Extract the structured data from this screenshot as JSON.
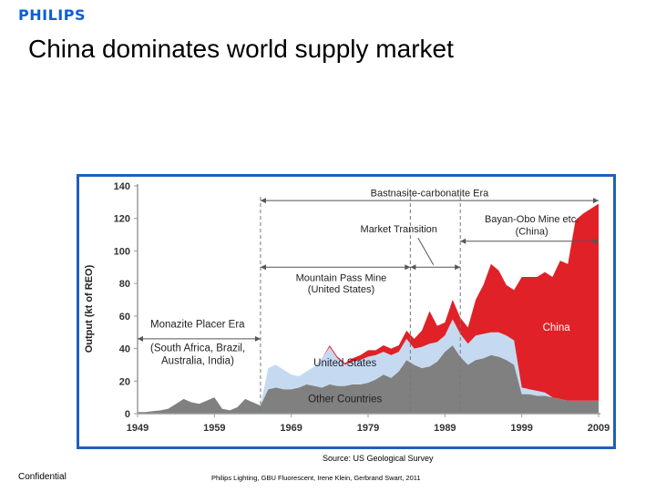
{
  "header": {
    "logo_text": "PHILIPS",
    "title": "China dominates world supply market"
  },
  "chart_data": {
    "type": "area",
    "title": "",
    "ylabel": "Output (kt of REO)",
    "xlabel": "",
    "xlim": [
      1949,
      2009
    ],
    "ylim": [
      0,
      140
    ],
    "x_ticks": [
      1949,
      1959,
      1969,
      1979,
      1989,
      1999,
      2009
    ],
    "y_ticks": [
      0,
      20,
      40,
      60,
      80,
      100,
      120,
      140
    ],
    "grid": false,
    "stacked": true,
    "x": [
      1949,
      1950,
      1951,
      1952,
      1953,
      1954,
      1955,
      1956,
      1957,
      1958,
      1959,
      1960,
      1961,
      1962,
      1963,
      1964,
      1965,
      1966,
      1967,
      1968,
      1969,
      1970,
      1971,
      1972,
      1973,
      1974,
      1975,
      1976,
      1977,
      1978,
      1979,
      1980,
      1981,
      1982,
      1983,
      1984,
      1985,
      1986,
      1987,
      1988,
      1989,
      1990,
      1991,
      1992,
      1993,
      1994,
      1995,
      1996,
      1997,
      1998,
      1999,
      2000,
      2001,
      2002,
      2003,
      2004,
      2005,
      2006,
      2007,
      2008,
      2009
    ],
    "series": [
      {
        "name": "Other Countries",
        "color": "#808080",
        "values": [
          1,
          1,
          1.5,
          2,
          3,
          6,
          9,
          7,
          6,
          8,
          10,
          3,
          2,
          4,
          9,
          7,
          5,
          15,
          16,
          15,
          15,
          16,
          18,
          17,
          16,
          18,
          17,
          17,
          18,
          18,
          19,
          21,
          24,
          22,
          26,
          33,
          30,
          28,
          29,
          32,
          38,
          42,
          35,
          30,
          33,
          34,
          36,
          35,
          33,
          30,
          12,
          12,
          11,
          11,
          10,
          9,
          8,
          8,
          8,
          8,
          8
        ]
      },
      {
        "name": "United States",
        "color": "#c5daf0",
        "values": [
          0,
          0,
          0,
          0,
          0,
          0,
          0,
          0,
          0,
          0,
          0,
          0,
          0,
          0,
          0,
          0,
          0,
          13,
          14,
          12,
          9,
          7,
          8,
          12,
          18,
          23,
          17,
          13,
          14,
          15,
          16,
          15,
          14,
          14,
          12,
          13,
          10,
          13,
          14,
          12,
          10,
          16,
          14,
          13,
          15,
          15,
          14,
          15,
          15,
          15,
          4,
          3,
          3,
          2,
          0,
          0,
          0,
          0,
          0,
          0,
          0
        ]
      },
      {
        "name": "China",
        "color": "#e02127",
        "values": [
          0,
          0,
          0,
          0,
          0,
          0,
          0,
          0,
          0,
          0,
          0,
          0,
          0,
          0,
          0,
          0,
          0,
          0,
          0,
          0,
          0,
          0,
          0,
          0,
          0,
          1,
          1,
          1,
          2,
          3,
          4,
          3,
          4,
          4,
          4,
          5,
          6,
          10,
          20,
          10,
          8,
          12,
          10,
          10,
          22,
          30,
          42,
          38,
          31,
          31,
          68,
          69,
          70,
          74,
          74,
          85,
          84,
          111,
          115,
          118,
          121
        ]
      }
    ],
    "annotations": {
      "era_top": "Bastnasite-carbonatite Era",
      "market_transition": "Market Transition",
      "bayan_line1": "Bayan-Obo Mine etc.",
      "bayan_line2": "(China)",
      "mountain_line1": "Mountain Pass Mine",
      "mountain_line2": "(United States)",
      "monazite_title": "Monazite Placer Era",
      "monazite_line1": "(South Africa, Brazil,",
      "monazite_line2": "Australia, India)",
      "label_china": "China",
      "label_us": "United States",
      "label_other": "Other Countries"
    }
  },
  "source_note": "Source: US Geological Survey",
  "footer": {
    "left": "Confidential",
    "middle": "Philips Lighting, GBU Fluorescent, Irene Klein, Gerbrand Swart, 2011"
  }
}
